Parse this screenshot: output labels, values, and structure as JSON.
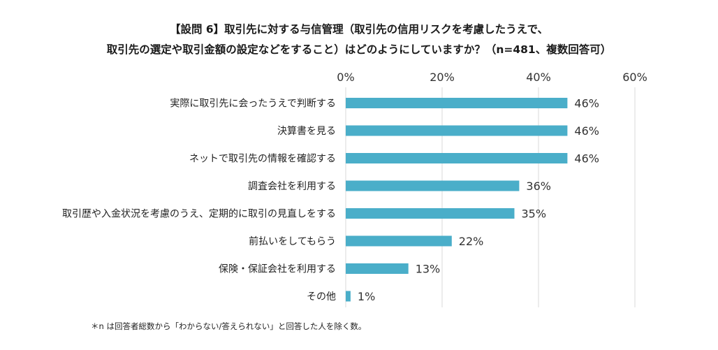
{
  "chart_data": {
    "type": "bar",
    "orientation": "horizontal",
    "title_line1": "【設問 6】取引先に対する与信管理（取引先の信用リスクを考慮したうえで、",
    "title_line2": "取引先の選定や取引金額の設定などをすること）はどのようにしていますか？（n=481、複数回答可）",
    "xlim": [
      0,
      60
    ],
    "ticks": [
      0,
      20,
      40,
      60
    ],
    "tick_labels": [
      "0%",
      "20%",
      "40%",
      "60%"
    ],
    "grid": true,
    "bar_color": "#4AAEC9",
    "categories": [
      "実際に取引先に会ったうえで判断する",
      "決算書を見る",
      "ネットで取引先の情報を確認する",
      "調査会社を利用する",
      "取引歴や入金状況を考慮のうえ、定期的に取引の見直しをする",
      "前払いをしてもらう",
      "保険・保証会社を利用する",
      "その他"
    ],
    "values": [
      46,
      46,
      46,
      36,
      35,
      22,
      13,
      1
    ],
    "value_labels": [
      "46%",
      "46%",
      "46%",
      "36%",
      "35%",
      "22%",
      "13%",
      "1%"
    ],
    "footnote": "＊n は回答者総数から「わからない/答えられない」と回答した人を除く数。"
  }
}
